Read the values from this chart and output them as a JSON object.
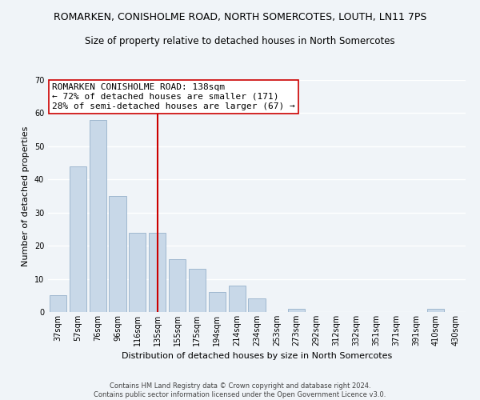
{
  "title": "ROMARKEN, CONISHOLME ROAD, NORTH SOMERCOTES, LOUTH, LN11 7PS",
  "subtitle": "Size of property relative to detached houses in North Somercotes",
  "xlabel": "Distribution of detached houses by size in North Somercotes",
  "ylabel": "Number of detached properties",
  "footer_line1": "Contains HM Land Registry data © Crown copyright and database right 2024.",
  "footer_line2": "Contains public sector information licensed under the Open Government Licence v3.0.",
  "bar_labels": [
    "37sqm",
    "57sqm",
    "76sqm",
    "96sqm",
    "116sqm",
    "135sqm",
    "155sqm",
    "175sqm",
    "194sqm",
    "214sqm",
    "234sqm",
    "253sqm",
    "273sqm",
    "292sqm",
    "312sqm",
    "332sqm",
    "351sqm",
    "371sqm",
    "391sqm",
    "410sqm",
    "430sqm"
  ],
  "bar_values": [
    5,
    44,
    58,
    35,
    24,
    24,
    16,
    13,
    6,
    8,
    4,
    0,
    1,
    0,
    0,
    0,
    0,
    0,
    0,
    1,
    0
  ],
  "bar_color": "#c8d8e8",
  "bar_edge_color": "#a0b8d0",
  "ylim": [
    0,
    70
  ],
  "yticks": [
    0,
    10,
    20,
    30,
    40,
    50,
    60,
    70
  ],
  "marker_color": "#cc0000",
  "annotation_title": "ROMARKEN CONISHOLME ROAD: 138sqm",
  "annotation_line1": "← 72% of detached houses are smaller (171)",
  "annotation_line2": "28% of semi-detached houses are larger (67) →",
  "annotation_box_color": "#ffffff",
  "annotation_box_edge": "#cc0000",
  "background_color": "#f0f4f8",
  "grid_color": "#ffffff",
  "title_fontsize": 9,
  "subtitle_fontsize": 8.5,
  "annotation_fontsize": 8,
  "xlabel_fontsize": 8,
  "ylabel_fontsize": 8,
  "tick_fontsize": 7,
  "footer_fontsize": 6
}
